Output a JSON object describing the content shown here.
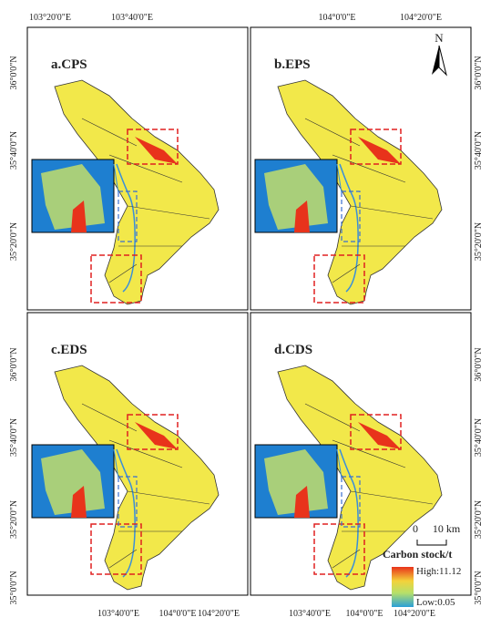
{
  "panels": [
    "a.CPS",
    "b.EPS",
    "c.EDS",
    "d.CDS"
  ],
  "lon_labels": [
    "103°20'0\"E",
    "103°40'0\"E",
    "104°0'0\"E",
    "104°20'0\"E"
  ],
  "lat_labels": [
    "36°0'0\"N",
    "35°40'0\"N",
    "35°20'0\"N",
    "35°0'0\"N"
  ],
  "north": "N",
  "scale": {
    "start": "0",
    "end": "10 km"
  },
  "legend": {
    "title": "Carbon stock/t",
    "high": "High:11.12",
    "low": "Low:0.05"
  }
}
